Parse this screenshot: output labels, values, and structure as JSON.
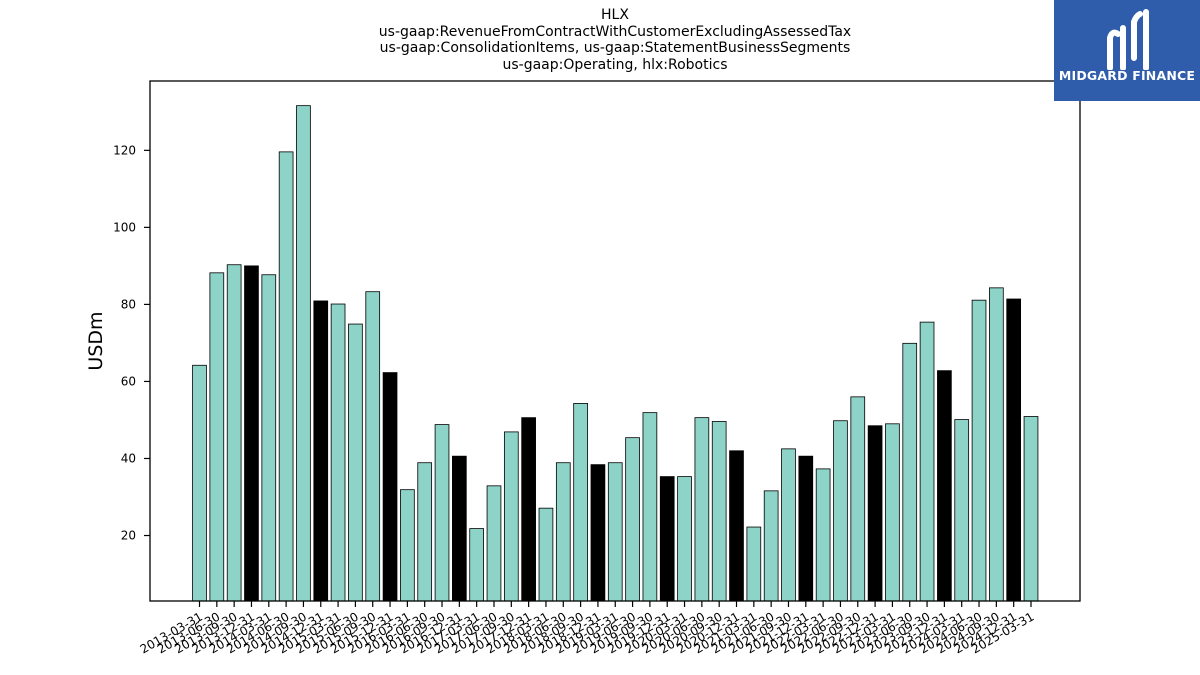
{
  "chart_data": {
    "type": "bar",
    "title_lines": [
      "HLX",
      "us-gaap:RevenueFromContractWithCustomerExcludingAssessedTax",
      "us-gaap:ConsolidationItems, us-gaap:StatementBusinessSegments",
      "us-gaap:Operating, hlx:Robotics"
    ],
    "ylabel": "USDm",
    "xlabel": "",
    "ylim": [
      3,
      138
    ],
    "yticks": [
      20,
      40,
      60,
      80,
      100,
      120
    ],
    "grid": false,
    "categories": [
      "2013-03-31",
      "2013-06-30",
      "2013-09-30",
      "2013-12-31",
      "2014-03-31",
      "2014-06-30",
      "2014-09-30",
      "2014-12-31",
      "2015-03-31",
      "2015-06-30",
      "2015-09-30",
      "2015-12-31",
      "2016-03-31",
      "2016-06-30",
      "2016-09-30",
      "2016-12-31",
      "2017-03-31",
      "2017-06-30",
      "2017-09-30",
      "2017-12-31",
      "2018-03-31",
      "2018-06-30",
      "2018-09-30",
      "2018-12-31",
      "2019-03-31",
      "2019-06-30",
      "2019-09-30",
      "2019-12-31",
      "2020-03-31",
      "2020-06-30",
      "2020-09-30",
      "2020-12-31",
      "2021-03-31",
      "2021-06-30",
      "2021-09-30",
      "2021-12-31",
      "2022-03-31",
      "2022-06-30",
      "2022-09-30",
      "2022-12-31",
      "2023-03-31",
      "2023-06-30",
      "2023-09-30",
      "2023-12-31",
      "2024-03-31",
      "2024-06-30",
      "2024-09-30",
      "2024-12-31",
      "2025-03-31"
    ],
    "values": [
      64.2,
      88.2,
      90.3,
      90.0,
      87.7,
      119.6,
      131.6,
      80.9,
      80.1,
      74.9,
      83.3,
      62.3,
      31.9,
      38.9,
      48.8,
      40.6,
      21.8,
      32.9,
      46.9,
      50.6,
      27.1,
      38.9,
      54.3,
      38.4,
      38.9,
      45.4,
      51.9,
      35.3,
      35.3,
      50.6,
      49.6,
      42.0,
      22.2,
      31.6,
      42.5,
      40.6,
      37.3,
      49.8,
      56.0,
      48.5,
      49.0,
      69.9,
      75.4,
      62.8,
      50.1,
      81.1,
      84.3,
      81.4,
      50.9
    ],
    "colors": {
      "quarter": "#8dd3c7",
      "year_end": "#000000"
    }
  },
  "logo": {
    "text": "MIDGARD FINANCE",
    "background": "#2f5cab"
  }
}
